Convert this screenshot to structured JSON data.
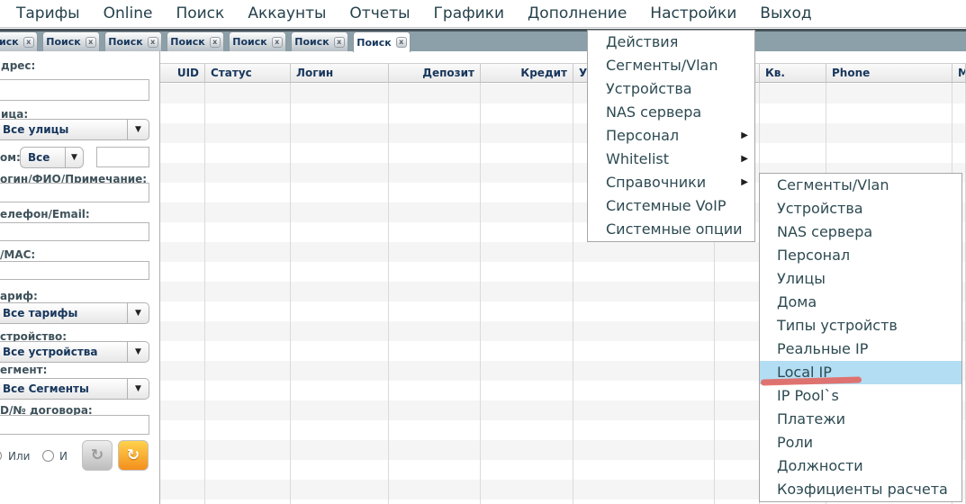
{
  "menubar": {
    "items": [
      {
        "label": "Тарифы"
      },
      {
        "label": "Online"
      },
      {
        "label": "Поиск"
      },
      {
        "label": "Аккаунты"
      },
      {
        "label": "Отчеты"
      },
      {
        "label": "Графики"
      },
      {
        "label": "Дополнение"
      },
      {
        "label": "Настройки"
      },
      {
        "label": "Выход"
      }
    ]
  },
  "tabs": {
    "items": [
      {
        "label": "Поиск"
      },
      {
        "label": "Поиск"
      },
      {
        "label": "Поиск"
      },
      {
        "label": "Поиск"
      },
      {
        "label": "Поиск"
      },
      {
        "label": "Поиск"
      },
      {
        "label": "Поиск"
      }
    ]
  },
  "icons": {
    "close": "x",
    "dropdown_arrow": "▼",
    "submenu_arrow": "▶",
    "refresh": "↻"
  },
  "sidebar": {
    "address_label": "дрес:",
    "street_label": "ица:",
    "street_value": "Все улицы",
    "house_label": "ом:",
    "house_value": "Все",
    "login_label": "огин/ФИО/Примечание:",
    "phone_label": "елефон/Email:",
    "ipmac_label": "/MAC:",
    "tariff_label": "ариф:",
    "tariff_value": "Все тарифы",
    "device_label": "стройство:",
    "device_value": "Все устройства",
    "segment_label": "егмент:",
    "segment_value": "Все Сегменты",
    "uid_label": "D/№ договора:",
    "radio_or": "Или",
    "radio_and": "И"
  },
  "table": {
    "columns": [
      {
        "label": "UID"
      },
      {
        "label": "Статус"
      },
      {
        "label": "Логин"
      },
      {
        "label": "Депозит"
      },
      {
        "label": "Кредит"
      },
      {
        "label": "У"
      },
      {
        "label": ""
      },
      {
        "label": "Кв."
      },
      {
        "label": "Phone"
      },
      {
        "label": "М"
      }
    ]
  },
  "settings_menu": {
    "items": [
      {
        "label": "Действия"
      },
      {
        "label": "Сегменты/Vlan"
      },
      {
        "label": "Устройства"
      },
      {
        "label": "NAS сервера"
      },
      {
        "label": "Персонал",
        "submenu": true
      },
      {
        "label": "Whitelist",
        "submenu": true
      },
      {
        "label": "Справочники",
        "submenu": true
      },
      {
        "label": "Системные VoIP"
      },
      {
        "label": "Системные опции"
      }
    ]
  },
  "handbooks_submenu": {
    "items": [
      {
        "label": "Сегменты/Vlan"
      },
      {
        "label": "Устройства"
      },
      {
        "label": "NAS сервера"
      },
      {
        "label": "Персонал"
      },
      {
        "label": "Улицы"
      },
      {
        "label": "Дома"
      },
      {
        "label": "Типы устройств"
      },
      {
        "label": "Реальные IP"
      },
      {
        "label": "Local IP",
        "highlighted": true
      },
      {
        "label": "IP Pool`s"
      },
      {
        "label": "Платежи"
      },
      {
        "label": "Роли"
      },
      {
        "label": "Должности"
      },
      {
        "label": "Коэфициенты расчета"
      }
    ],
    "highlighted_item": "Local IP"
  },
  "colors": {
    "tab_band": "#8BA0A9",
    "menu_text": "#2D4A52",
    "header_text": "#17365C",
    "highlight": "#B3DDF3",
    "annotation": "#E4635E"
  }
}
